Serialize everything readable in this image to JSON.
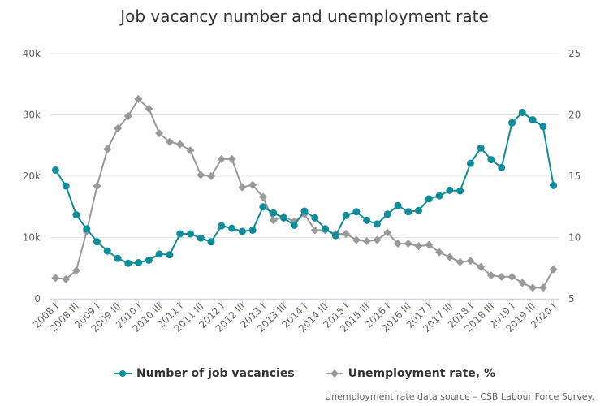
{
  "chart_data": {
    "type": "line",
    "title": "Job vacancy number and unemployment rate",
    "categories": [
      "2008 I",
      "2008 II",
      "2008 III",
      "2008 IV",
      "2009 I",
      "2009 II",
      "2009 III",
      "2009 IV",
      "2010 I",
      "2010 II",
      "2010 III",
      "2010 IV",
      "2011 I",
      "2011 II",
      "2011 III",
      "2011 IV",
      "2012 I",
      "2012 II",
      "2012 III",
      "2012 IV",
      "2013 I",
      "2013 II",
      "2013 III",
      "2013 IV",
      "2014 I",
      "2014 II",
      "2014 III",
      "2014 IV",
      "2015 I",
      "2015 II",
      "2015 III",
      "2015 IV",
      "2016 I",
      "2016 II",
      "2016 III",
      "2016 IV",
      "2017 I",
      "2017 II",
      "2017 III",
      "2017 IV",
      "2018 I",
      "2018 II",
      "2018 III",
      "2018 IV",
      "2019 I",
      "2019 II",
      "2019 III",
      "2019 IV",
      "2020 I"
    ],
    "xtick_labels": [
      "2008 I",
      "2008 III",
      "2009 I",
      "2009 III",
      "2010 I",
      "2010 III",
      "2011 I",
      "2011 III",
      "2012 I",
      "2012 III",
      "2013 I",
      "2013 III",
      "2014 I",
      "2014 III",
      "2015 I",
      "2015 III",
      "2016 I",
      "2016 III",
      "2017 I",
      "2017 III",
      "2018 I",
      "2018 III",
      "2019 I",
      "2019 III",
      "2020 I"
    ],
    "left_axis": {
      "ticks": [
        "0",
        "10k",
        "20k",
        "30k",
        "40k"
      ],
      "min": 0,
      "max": 40000
    },
    "right_axis": {
      "ticks": [
        "5",
        "10",
        "15",
        "20",
        "25"
      ],
      "min": 5,
      "max": 25
    },
    "series": [
      {
        "name": "Number of job vacancies",
        "axis": "left",
        "color": "#118b99",
        "marker": "circle",
        "values": [
          21000,
          18400,
          13700,
          11400,
          9300,
          7800,
          6600,
          5800,
          5900,
          6300,
          7300,
          7200,
          10600,
          10600,
          9900,
          9300,
          11900,
          11500,
          11000,
          11200,
          15000,
          14000,
          13200,
          12000,
          14300,
          13200,
          11400,
          10300,
          13600,
          14200,
          12800,
          12200,
          13800,
          15200,
          14200,
          14400,
          16300,
          16800,
          17700,
          17600,
          22100,
          24600,
          22700,
          21400,
          28700,
          30400,
          29200,
          28100,
          18500
        ]
      },
      {
        "name": "Unemployment rate, %",
        "axis": "right",
        "color": "#999999",
        "marker": "diamond",
        "values": [
          6.7,
          6.6,
          7.3,
          10.5,
          14.2,
          17.2,
          18.9,
          19.9,
          21.3,
          20.5,
          18.5,
          17.8,
          17.6,
          17.1,
          15.1,
          15.0,
          16.4,
          16.4,
          14.1,
          14.3,
          13.3,
          11.4,
          11.7,
          11.3,
          11.9,
          10.6,
          10.6,
          10.3,
          10.3,
          9.8,
          9.7,
          9.8,
          10.4,
          9.5,
          9.5,
          9.3,
          9.4,
          8.8,
          8.4,
          8.0,
          8.1,
          7.6,
          6.9,
          6.8,
          6.8,
          6.3,
          5.9,
          5.9,
          7.4
        ]
      }
    ],
    "legend_position": "bottom",
    "source_note": "Unemployment rate data source – CSB Labour Force Survey."
  }
}
